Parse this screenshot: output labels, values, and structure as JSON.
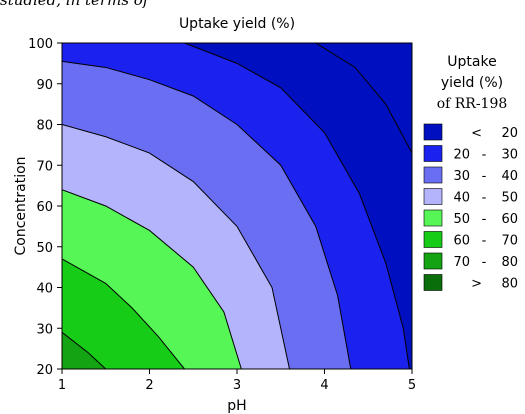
{
  "top_cropped_text": "studied, in terms of",
  "chart_data": {
    "type": "contour",
    "title": "Uptake yield (%)",
    "xlabel": "pH",
    "ylabel": "Concentration",
    "xlim": [
      1,
      5
    ],
    "ylim": [
      20,
      100
    ],
    "x_ticks": [
      "1",
      "2",
      "3",
      "4",
      "5"
    ],
    "y_ticks": [
      "20",
      "30",
      "40",
      "50",
      "60",
      "70",
      "80",
      "90",
      "100"
    ],
    "legend_title": [
      "Uptake",
      "yield (%)",
      "of RR-198"
    ],
    "legend_position": "right",
    "levels": [
      {
        "label_left": "<",
        "label_right": "20",
        "color": "#0010c0"
      },
      {
        "label_left": "20",
        "label_right": "30",
        "color": "#1c22ee"
      },
      {
        "label_left": "30",
        "label_right": "40",
        "color": "#6a6ef2"
      },
      {
        "label_left": "40",
        "label_right": "50",
        "color": "#b3b4fc"
      },
      {
        "label_left": "50",
        "label_right": "60",
        "color": "#56f656"
      },
      {
        "label_left": "60",
        "label_right": "70",
        "color": "#16cc16"
      },
      {
        "label_left": "70",
        "label_right": "80",
        "color": "#13a313"
      },
      {
        "label_left": ">",
        "label_right": "80",
        "color": "#0a6e0a"
      }
    ],
    "contours": [
      {
        "level": 80,
        "points": [
          [
            1,
            29
          ],
          [
            1.3,
            24
          ],
          [
            1.5,
            20
          ]
        ]
      },
      {
        "level": 70,
        "points": [
          [
            1,
            47
          ],
          [
            1.5,
            41
          ],
          [
            1.8,
            35
          ],
          [
            2.1,
            28
          ],
          [
            2.4,
            20
          ]
        ]
      },
      {
        "level": 60,
        "points": [
          [
            1,
            64
          ],
          [
            1.5,
            60
          ],
          [
            2,
            54
          ],
          [
            2.5,
            45
          ],
          [
            2.85,
            34
          ],
          [
            3.05,
            20
          ]
        ]
      },
      {
        "level": 50,
        "points": [
          [
            1,
            80
          ],
          [
            1.5,
            77
          ],
          [
            2,
            73
          ],
          [
            2.5,
            66
          ],
          [
            3,
            55
          ],
          [
            3.4,
            40
          ],
          [
            3.6,
            20
          ]
        ]
      },
      {
        "level": 40,
        "points": [
          [
            1,
            95.5
          ],
          [
            1.5,
            94
          ],
          [
            2,
            91
          ],
          [
            2.5,
            87
          ],
          [
            3,
            80
          ],
          [
            3.5,
            70
          ],
          [
            3.9,
            55
          ],
          [
            4.15,
            38
          ],
          [
            4.3,
            20
          ]
        ]
      },
      {
        "level": 30,
        "points": [
          [
            2.4,
            100
          ],
          [
            3,
            95
          ],
          [
            3.5,
            89
          ],
          [
            4,
            78
          ],
          [
            4.4,
            63
          ],
          [
            4.7,
            46
          ],
          [
            4.9,
            30
          ],
          [
            4.97,
            20
          ]
        ]
      },
      {
        "level": 20,
        "points": [
          [
            3.9,
            100
          ],
          [
            4.35,
            94
          ],
          [
            4.7,
            85
          ],
          [
            5,
            73
          ]
        ]
      }
    ]
  }
}
